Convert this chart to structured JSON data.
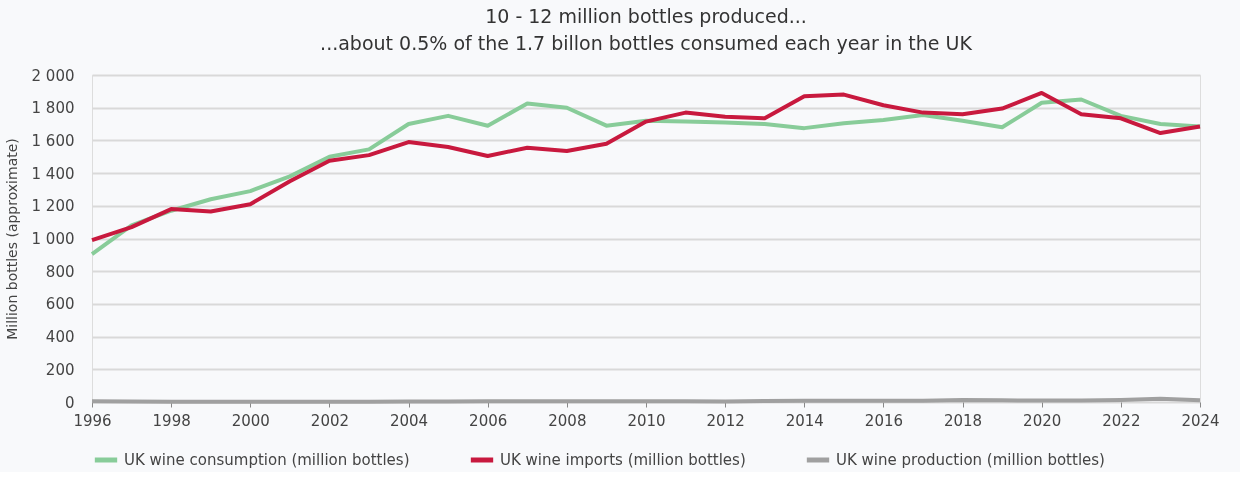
{
  "chart_data": {
    "type": "line",
    "title": "10 - 12 million bottles produced...",
    "subtitle": "...about 0.5% of the 1.7 billon bottles consumed each year in the UK",
    "ylabel": "Million bottles (approximate)",
    "x": [
      1996,
      1997,
      1998,
      1999,
      2000,
      2001,
      2002,
      2003,
      2004,
      2005,
      2006,
      2007,
      2008,
      2009,
      2010,
      2011,
      2012,
      2013,
      2014,
      2015,
      2016,
      2017,
      2018,
      2019,
      2020,
      2021,
      2022,
      2023,
      2024
    ],
    "series": [
      {
        "name": "UK wine consumption (million bottles)",
        "color": "#88cc99",
        "values": [
          905,
          1080,
          1170,
          1240,
          1290,
          1380,
          1500,
          1545,
          1700,
          1750,
          1690,
          1825,
          1800,
          1690,
          1720,
          1715,
          1710,
          1700,
          1675,
          1705,
          1725,
          1755,
          1720,
          1680,
          1830,
          1850,
          1750,
          1700,
          1685
        ]
      },
      {
        "name": "UK wine imports (million bottles)",
        "color": "#c8193e",
        "values": [
          990,
          1070,
          1180,
          1165,
          1210,
          1350,
          1475,
          1510,
          1590,
          1560,
          1505,
          1555,
          1535,
          1580,
          1715,
          1770,
          1745,
          1735,
          1870,
          1880,
          1815,
          1770,
          1760,
          1795,
          1890,
          1760,
          1735,
          1645,
          1685
        ]
      },
      {
        "name": "UK wine production (million bottles)",
        "color": "#a0a0a0",
        "values": [
          5,
          3,
          2,
          2,
          2,
          2,
          2,
          2,
          3,
          3,
          4,
          4,
          4,
          4,
          5,
          5,
          3,
          6,
          7,
          7,
          7,
          7,
          12,
          10,
          9,
          9,
          12,
          20,
          10
        ]
      }
    ],
    "xlim": [
      1996,
      2024
    ],
    "xticks": [
      1996,
      1998,
      2000,
      2002,
      2004,
      2006,
      2008,
      2010,
      2012,
      2014,
      2016,
      2018,
      2020,
      2022,
      2024
    ],
    "ylim": [
      0,
      2000
    ],
    "yticks": [
      {
        "value": 0,
        "label": "0"
      },
      {
        "value": 200,
        "label": "200"
      },
      {
        "value": 400,
        "label": "400"
      },
      {
        "value": 600,
        "label": "600"
      },
      {
        "value": 800,
        "label": "800"
      },
      {
        "value": 1000,
        "label": "1 000"
      },
      {
        "value": 1200,
        "label": "1 200"
      },
      {
        "value": 1400,
        "label": "1 400"
      },
      {
        "value": 1600,
        "label": "1 600"
      },
      {
        "value": 1800,
        "label": "1 800"
      },
      {
        "value": 2000,
        "label": "2 000"
      }
    ],
    "grid": "y",
    "legend": "bottom",
    "marker": "none",
    "line_style": "solid"
  }
}
